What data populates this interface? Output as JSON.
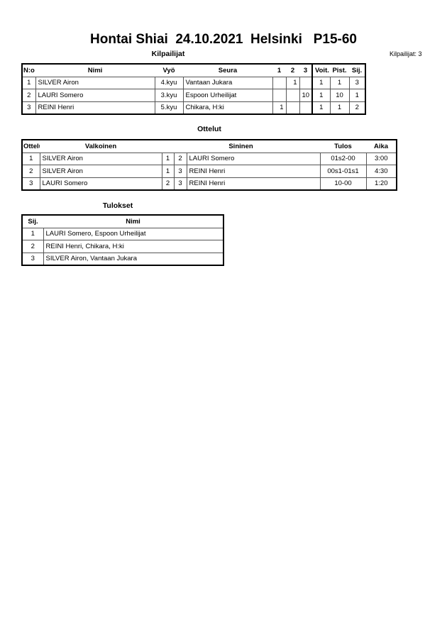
{
  "title": "Hontai Shiai  24.10.2021  Helsinki   P15-60",
  "competitors": {
    "heading": "Kilpailijat",
    "count_label": "Kilpailijat: 3",
    "columns": [
      "N:o",
      "Nimi",
      "Vyö",
      "Seura",
      "1",
      "2",
      "3",
      "Voit.",
      "Pist.",
      "Sij."
    ],
    "rows": [
      [
        "1",
        "SILVER Airon",
        "4.kyu",
        "Vantaan Jukara",
        "",
        "1",
        "",
        "1",
        "1",
        "3"
      ],
      [
        "2",
        "LAURI Somero",
        "3.kyu",
        "Espoon Urheilijat",
        "",
        "",
        "10",
        "1",
        "10",
        "1"
      ],
      [
        "3",
        "REINI Henri",
        "5.kyu",
        "Chikara, H:ki",
        "1",
        "",
        "",
        "1",
        "1",
        "2"
      ]
    ]
  },
  "matches": {
    "heading": "Ottelut",
    "columns": [
      "Ottelu",
      "Valkoinen",
      "Sininen",
      "Tulos",
      "Aika"
    ],
    "rows": [
      [
        "1",
        "SILVER Airon",
        "1",
        "2",
        "LAURI Somero",
        "01s2-00",
        "3:00"
      ],
      [
        "2",
        "SILVER Airon",
        "1",
        "3",
        "REINI Henri",
        "00s1-01s1",
        "4:30"
      ],
      [
        "3",
        "LAURI Somero",
        "2",
        "3",
        "REINI Henri",
        "10-00",
        "1:20"
      ]
    ]
  },
  "results": {
    "heading": "Tulokset",
    "columns": [
      "Sij.",
      "Nimi"
    ],
    "rows": [
      [
        "1",
        "LAURI Somero, Espoon Urheilijat"
      ],
      [
        "2",
        "REINI Henri, Chikara, H:ki"
      ],
      [
        "3",
        "SILVER Airon, Vantaan Jukara"
      ]
    ]
  }
}
